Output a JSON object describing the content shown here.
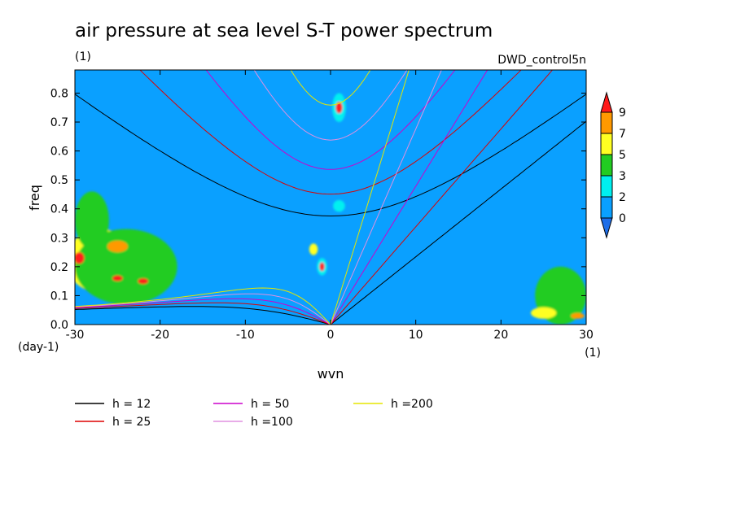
{
  "chart_data": {
    "type": "heatmap",
    "title": "air pressure at sea level S-T power spectrum",
    "units": "(1)",
    "source": "DWD_control5n",
    "xlabel": "wvn",
    "ylabel": "freq",
    "x_units": "(1)",
    "y_units": "(day-1)",
    "xlim": [
      -30,
      30
    ],
    "ylim": [
      0,
      0.88
    ],
    "x_ticks": [
      "-30",
      "-20",
      "-10",
      "0",
      "10",
      "20",
      "30"
    ],
    "y_ticks": [
      "0.0",
      "0.1",
      "0.2",
      "0.3",
      "0.4",
      "0.5",
      "0.6",
      "0.7",
      "0.8"
    ],
    "colorbar": {
      "levels": [
        "0",
        "2",
        "3",
        "5",
        "7",
        "9"
      ],
      "colors": [
        "#1e6ee8",
        "#0aa0ff",
        "#00f0f0",
        "#22cc22",
        "#ffff22",
        "#ff9900",
        "#ff1a1a"
      ]
    },
    "field_blobs": [
      {
        "x": -27,
        "y": 0.22,
        "rx": 4,
        "ry": 0.11,
        "level": 4
      },
      {
        "x": -24,
        "y": 0.2,
        "rx": 6,
        "ry": 0.13,
        "level": 3
      },
      {
        "x": -28,
        "y": 0.36,
        "rx": 2,
        "ry": 0.1,
        "level": 3
      },
      {
        "x": -29.5,
        "y": 0.23,
        "rx": 0.6,
        "ry": 0.02,
        "level": 6
      },
      {
        "x": -25,
        "y": 0.16,
        "rx": 0.6,
        "ry": 0.01,
        "level": 6
      },
      {
        "x": -22,
        "y": 0.15,
        "rx": 0.6,
        "ry": 0.01,
        "level": 6
      },
      {
        "x": -25,
        "y": 0.27,
        "rx": 1.2,
        "ry": 0.02,
        "level": 5
      },
      {
        "x": 1,
        "y": 0.75,
        "rx": 0.8,
        "ry": 0.05,
        "level": 2
      },
      {
        "x": 1,
        "y": 0.75,
        "rx": 0.4,
        "ry": 0.02,
        "level": 6
      },
      {
        "x": -2,
        "y": 0.26,
        "rx": 0.5,
        "ry": 0.02,
        "level": 4
      },
      {
        "x": -1,
        "y": 0.2,
        "rx": 0.6,
        "ry": 0.03,
        "level": 2
      },
      {
        "x": -1,
        "y": 0.2,
        "rx": 0.3,
        "ry": 0.015,
        "level": 6
      },
      {
        "x": 1,
        "y": 0.41,
        "rx": 0.7,
        "ry": 0.02,
        "level": 2
      },
      {
        "x": 27,
        "y": 0.1,
        "rx": 3,
        "ry": 0.1,
        "level": 3
      },
      {
        "x": 25,
        "y": 0.04,
        "rx": 1.5,
        "ry": 0.02,
        "level": 4
      },
      {
        "x": 29,
        "y": 0.03,
        "rx": 0.8,
        "ry": 0.01,
        "level": 5
      }
    ],
    "dispersion_curves": [
      {
        "name": "h = 12",
        "h": 12,
        "color": "#000000"
      },
      {
        "name": "h = 25",
        "h": 25,
        "color": "#dd0000"
      },
      {
        "name": "h = 50",
        "h": 50,
        "color": "#cc00cc"
      },
      {
        "name": "h =100",
        "h": 100,
        "color": "#e090e0"
      },
      {
        "name": "h =200",
        "h": 200,
        "color": "#e6e600"
      }
    ],
    "legend_placement": "bottom"
  }
}
